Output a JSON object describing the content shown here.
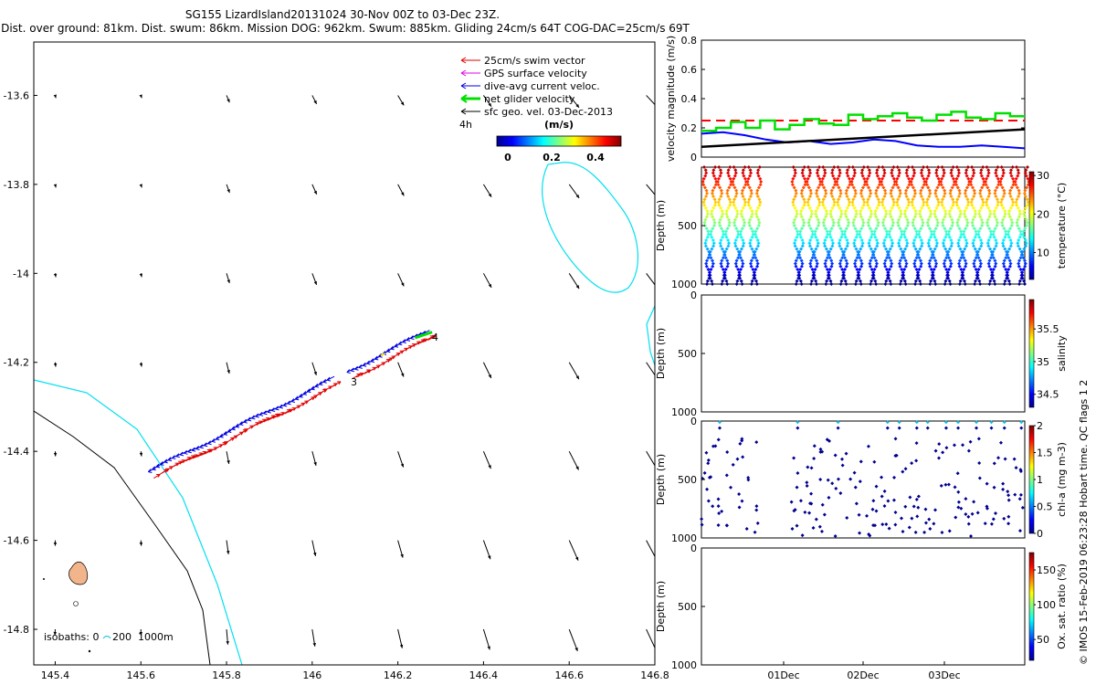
{
  "header": {
    "title": "SG155 LizardIsland20131024 30-Nov 00Z to 03-Dec 23Z.",
    "subtitle": "Dist. over ground: 81km. Dist. swum: 86km. Mission DOG: 962km. Swum: 885km. Gliding 24cm/s 64T COG-DAC=25cm/s 69T"
  },
  "map": {
    "xticks": [
      "145.4",
      "145.6",
      "145.8",
      "146",
      "146.2",
      "146.4",
      "146.6",
      "146.8"
    ],
    "yticks": [
      "-13.6",
      "-13.8",
      "-14",
      "-14.2",
      "-14.4",
      "-14.6",
      "-14.8"
    ],
    "xlim": [
      145.35,
      146.8
    ],
    "ylim": [
      -14.88,
      -13.48
    ],
    "legend": [
      {
        "label": "25cm/s swim vector",
        "color": "#e00000"
      },
      {
        "label": "GPS surface velocity",
        "color": "#e000e0"
      },
      {
        "label": "dive-avg current veloc.",
        "color": "#0000e0"
      },
      {
        "label": "net glider velocity",
        "color": "#00e000"
      },
      {
        "label": "sfc geo. vel. 03-Dec-2013",
        "color": "#000000"
      }
    ],
    "time_label": "4h",
    "colorbar": {
      "unit": "(m/s)",
      "ticks": [
        "0",
        "0.2",
        "0.4"
      ]
    },
    "isobaths_label": "isobaths: 0",
    "isobath_200": "200",
    "isobath_1000": "1000m",
    "track_labels": [
      "4",
      "3"
    ],
    "track_start": [
      145.63,
      -14.45
    ],
    "track_end": [
      146.27,
      -14.14
    ]
  },
  "chart_data": [
    {
      "type": "line",
      "ylabel": "velocity magnitude (m/s)",
      "ylim": [
        0,
        0.8
      ],
      "yticks": [
        "0",
        "0.2",
        "0.4",
        "0.6",
        "0.8"
      ],
      "series": [
        {
          "color": "#ff0000",
          "style": "dashed",
          "values": [
            0.25,
            0.25
          ]
        },
        {
          "color": "#0000ff",
          "values": [
            0.16,
            0.17,
            0.15,
            0.12,
            0.1,
            0.11,
            0.09,
            0.1,
            0.12,
            0.11,
            0.08,
            0.07,
            0.07,
            0.08,
            0.07,
            0.06
          ]
        },
        {
          "color": "#000000",
          "values": [
            0.07,
            0.19
          ]
        },
        {
          "color": "#00e000",
          "values": [
            0.18,
            0.2,
            0.24,
            0.2,
            0.25,
            0.19,
            0.22,
            0.26,
            0.23,
            0.22,
            0.29,
            0.26,
            0.28,
            0.3,
            0.27,
            0.25,
            0.29,
            0.31,
            0.27,
            0.26,
            0.3,
            0.28
          ]
        }
      ]
    },
    {
      "type": "scatter",
      "ylabel": "Depth (m)",
      "ylim": [
        0,
        1000
      ],
      "yticks": [
        "500",
        "1000"
      ],
      "colorbar": {
        "label": "temperature (°C)",
        "ticks": [
          "10",
          "20",
          "30"
        ],
        "range": [
          3,
          31
        ]
      },
      "dives": 22
    },
    {
      "type": "scatter",
      "ylabel": "Depth (m)",
      "ylim": [
        0,
        1000
      ],
      "yticks": [
        "0",
        "500",
        "1000"
      ],
      "colorbar": {
        "label": "salinity",
        "ticks": [
          "34.5",
          "35",
          "35.5"
        ],
        "range": [
          34.3,
          35.95
        ]
      }
    },
    {
      "type": "scatter",
      "ylabel": "Depth (m)",
      "ylim": [
        0,
        1000
      ],
      "yticks": [
        "0",
        "500",
        "1000"
      ],
      "colorbar": {
        "label": "chl-a (mg m-3)",
        "ticks": [
          "0",
          "0.5",
          "1",
          "1.5",
          "2"
        ],
        "range": [
          0,
          2
        ]
      }
    },
    {
      "type": "scatter",
      "ylabel": "Depth (m)",
      "ylim": [
        0,
        1000
      ],
      "yticks": [
        "0",
        "500",
        "1000"
      ],
      "xticks": [
        "01Dec",
        "02Dec",
        "03Dec"
      ],
      "colorbar": {
        "label": "Ox. sat. ratio (%)",
        "ticks": [
          "50",
          "100",
          "150"
        ],
        "range": [
          20,
          175
        ]
      }
    }
  ],
  "footer": {
    "side_note": "© IMOS 15-Feb-2019 06:23:28 Hobart time. QC flags 1  2"
  }
}
